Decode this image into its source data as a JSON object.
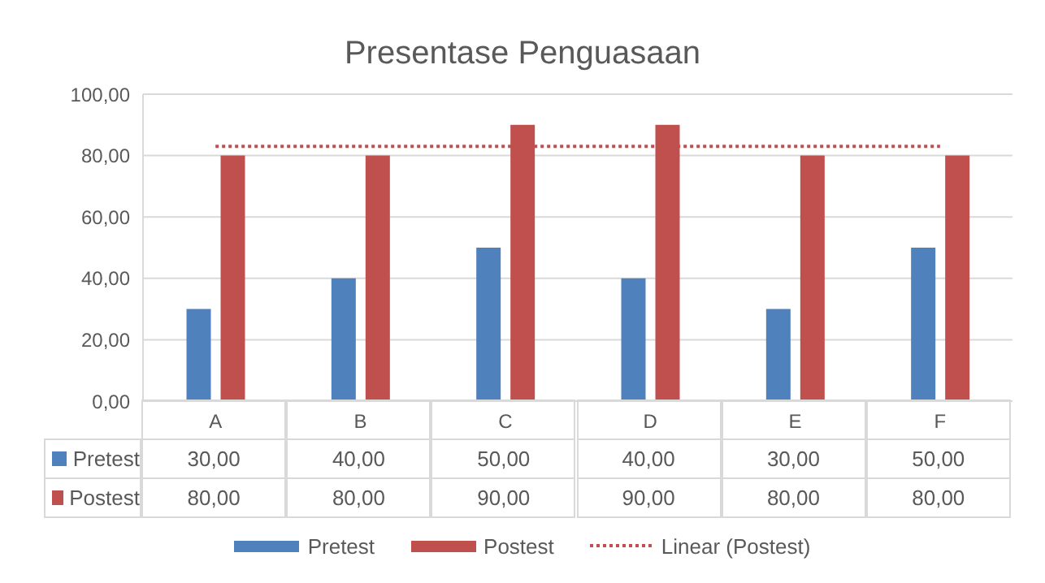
{
  "chart_data": {
    "type": "bar",
    "title": "Presentase Penguasaan",
    "categories": [
      "A",
      "B",
      "C",
      "D",
      "E",
      "F"
    ],
    "series": [
      {
        "name": "Pretest",
        "color": "#4f81bd",
        "values": [
          30,
          40,
          50,
          40,
          30,
          50
        ],
        "value_labels": [
          "30,00",
          "40,00",
          "50,00",
          "40,00",
          "30,00",
          "50,00"
        ]
      },
      {
        "name": "Postest",
        "color": "#c0504d",
        "values": [
          80,
          80,
          90,
          90,
          80,
          80
        ],
        "value_labels": [
          "80,00",
          "80,00",
          "90,00",
          "90,00",
          "80,00",
          "80,00"
        ]
      },
      {
        "name": "Linear (Postest)",
        "type": "line",
        "color": "#c0504d",
        "line_style": "dotted",
        "marker": "none",
        "values": [
          83,
          83,
          83,
          83,
          83,
          83
        ]
      }
    ],
    "ylim": [
      0,
      100
    ],
    "yticks": [
      {
        "value": 0,
        "label": "0,00"
      },
      {
        "value": 20,
        "label": "20,00"
      },
      {
        "value": 40,
        "label": "40,00"
      },
      {
        "value": 60,
        "label": "60,00"
      },
      {
        "value": 80,
        "label": "80,00"
      },
      {
        "value": 100,
        "label": "100,00"
      }
    ],
    "grid": "y",
    "legend": "bottom"
  }
}
